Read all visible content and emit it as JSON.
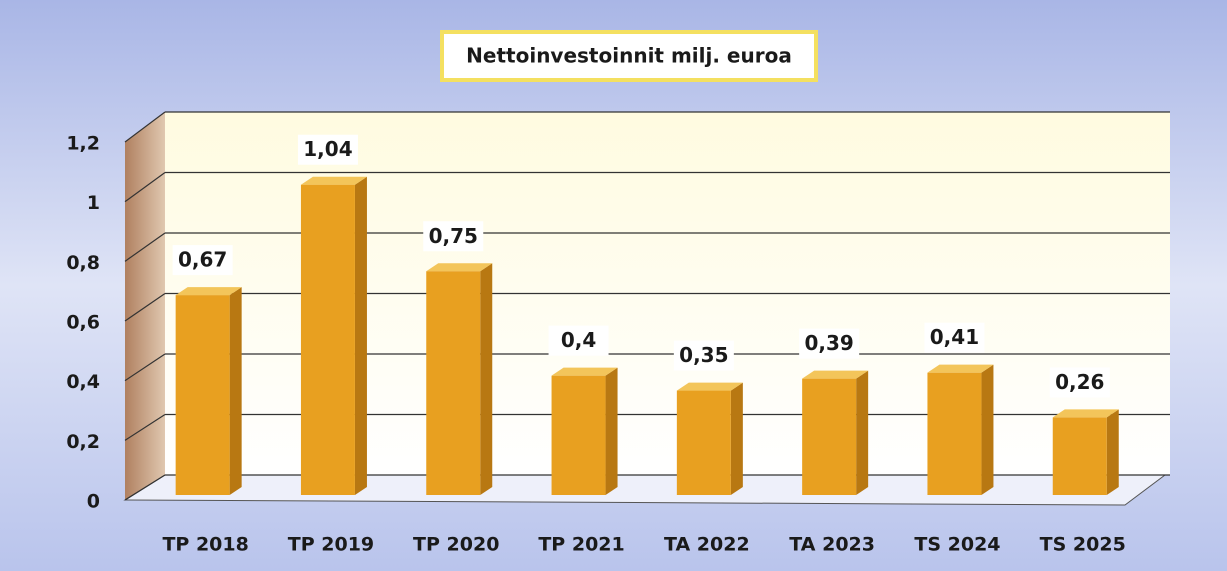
{
  "chart_data": {
    "type": "bar",
    "title": "Nettoinvestoinnit milj. euroa",
    "categories": [
      "TP 2018",
      "TP 2019",
      "TP 2020",
      "TP 2021",
      "TA 2022",
      "TA 2023",
      "TS 2024",
      "TS 2025"
    ],
    "values": [
      0.67,
      1.04,
      0.75,
      0.4,
      0.35,
      0.39,
      0.41,
      0.26
    ],
    "value_labels": [
      "0,67",
      "1,04",
      "0,75",
      "0,4",
      "0,35",
      "0,39",
      "0,41",
      "0,26"
    ],
    "color": "#e8a020",
    "ylim": [
      0,
      1.2
    ],
    "yticks": [
      0,
      {
        "value": 0.2,
        "label": "0,2"
      },
      {
        "value": 0.4,
        "label": "0,4"
      },
      {
        "value": 0.6,
        "label": "0,6"
      },
      {
        "value": 0.8,
        "label": "0,8"
      },
      1,
      {
        "value": 1.2,
        "label": "1,2"
      }
    ],
    "grid": true
  }
}
